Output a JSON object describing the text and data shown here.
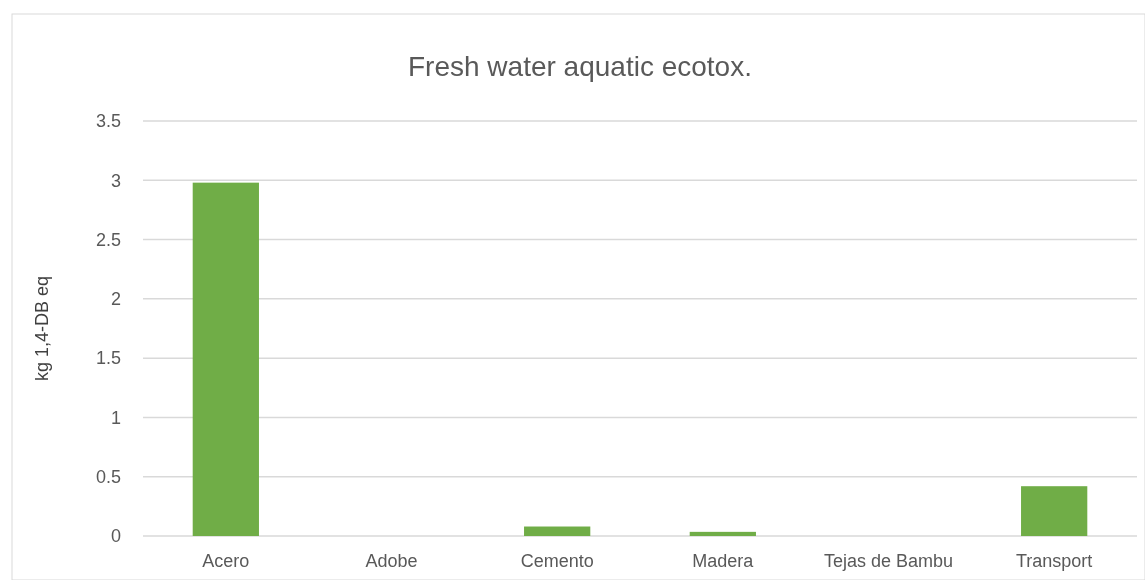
{
  "chart_data": {
    "type": "bar",
    "title": "Fresh water aquatic ecotox.",
    "ylabel": "kg 1,4-DB eq",
    "categories": [
      "Acero",
      "Adobe",
      "Cemento",
      "Madera",
      "Tejas de Bambu",
      "Transport"
    ],
    "values": [
      2.98,
      0,
      0.08,
      0.035,
      0,
      0.42
    ],
    "color": "#70ad47",
    "ylim": [
      0,
      3.5
    ],
    "yticks": [
      0,
      0.5,
      1,
      1.5,
      2,
      2.5,
      3,
      3.5
    ],
    "grid": "y"
  }
}
